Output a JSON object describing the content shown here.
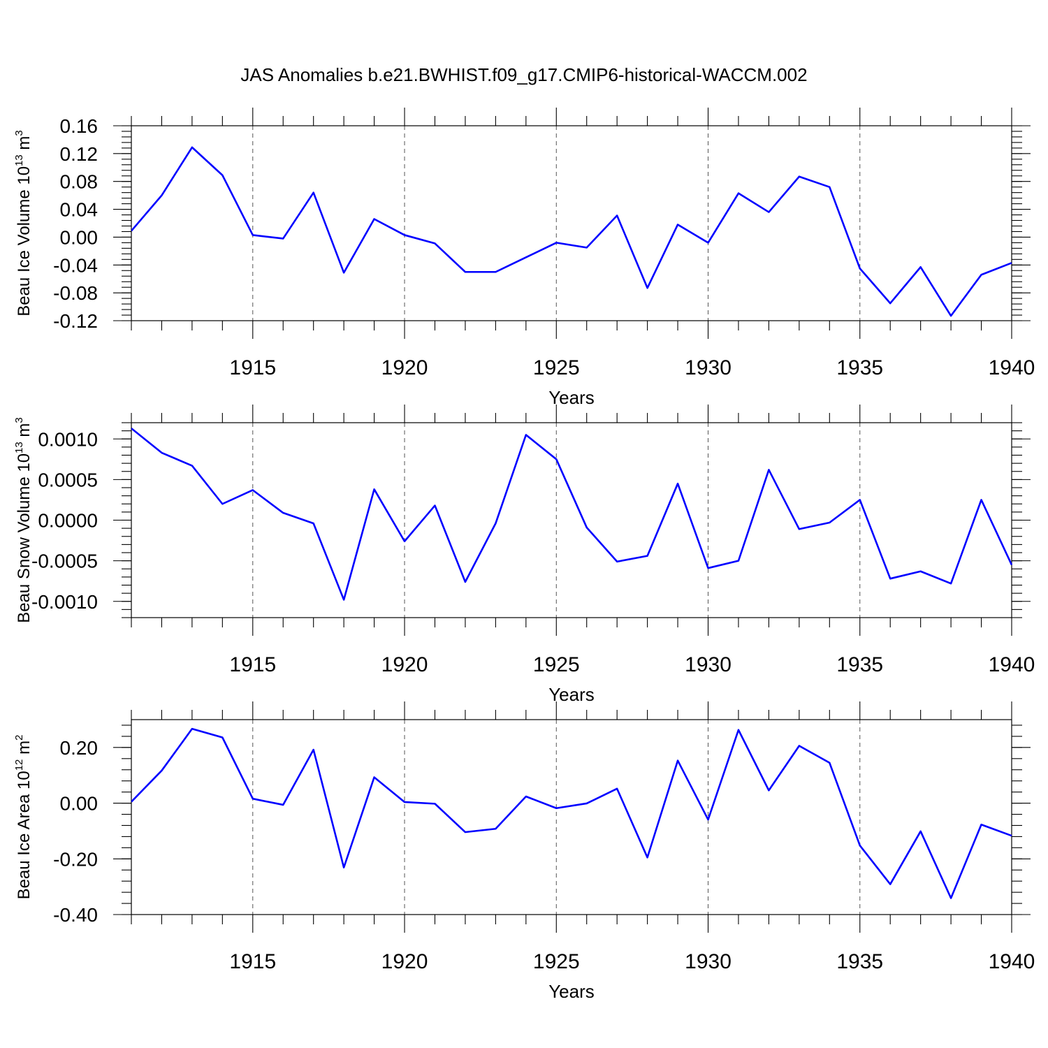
{
  "figure": {
    "title": "JAS Anomalies b.e21.BWHIST.f09_g17.CMIP6-historical-WACCM.002"
  },
  "chart_data": [
    {
      "type": "line",
      "id": "volume",
      "title": "",
      "xlabel": "Years",
      "ylabel": {
        "main": "Beau Ice Volume 10",
        "exp": "13",
        "unit": " m",
        "unit_exp": "3"
      },
      "xlim": [
        1911,
        1940
      ],
      "ylim": [
        -0.12,
        0.16
      ],
      "xticks": [
        1915,
        1920,
        1925,
        1930,
        1935,
        1940
      ],
      "xtick_labels": [
        "1915",
        "1920",
        "1925",
        "1930",
        "1935",
        "1940"
      ],
      "yticks": [
        -0.12,
        -0.08,
        -0.04,
        0.0,
        0.04,
        0.08,
        0.12,
        0.16
      ],
      "ytick_labels": [
        "-0.12",
        "-0.08",
        "-0.04",
        "0.00",
        "0.04",
        "0.08",
        "0.12",
        "0.16"
      ],
      "series_color": "#0000ff",
      "x": [
        1911,
        1912,
        1913,
        1914,
        1915,
        1916,
        1917,
        1918,
        1919,
        1920,
        1921,
        1922,
        1923,
        1924,
        1925,
        1926,
        1927,
        1928,
        1929,
        1930,
        1931,
        1932,
        1933,
        1934,
        1935,
        1936,
        1937,
        1938,
        1939,
        1940
      ],
      "values": [
        0.009,
        0.06,
        0.129,
        0.089,
        0.003,
        -0.002,
        0.064,
        -0.051,
        0.026,
        0.003,
        -0.009,
        -0.05,
        -0.05,
        -0.029,
        -0.008,
        -0.015,
        0.031,
        -0.073,
        0.018,
        -0.008,
        0.063,
        0.036,
        0.087,
        0.072,
        -0.045,
        -0.095,
        -0.043,
        -0.113,
        -0.054,
        -0.037
      ]
    },
    {
      "type": "line",
      "id": "snow",
      "title": "",
      "xlabel": "Years",
      "ylabel": {
        "main": "Beau Snow Volume 10",
        "exp": "13",
        "unit": " m",
        "unit_exp": "3"
      },
      "xlim": [
        1911,
        1940
      ],
      "ylim": [
        -0.0012,
        0.0012
      ],
      "xticks": [
        1915,
        1920,
        1925,
        1930,
        1935,
        1940
      ],
      "xtick_labels": [
        "1915",
        "1920",
        "1925",
        "1930",
        "1935",
        "1940"
      ],
      "yticks": [
        -0.001,
        -0.0005,
        0.0,
        0.0005,
        0.001
      ],
      "ytick_labels": [
        "-0.0010",
        "-0.0005",
        "0.0000",
        "0.0005",
        "0.0010"
      ],
      "series_color": "#0000ff",
      "x": [
        1911,
        1912,
        1913,
        1914,
        1915,
        1916,
        1917,
        1918,
        1919,
        1920,
        1921,
        1922,
        1923,
        1924,
        1925,
        1926,
        1927,
        1928,
        1929,
        1930,
        1931,
        1932,
        1933,
        1934,
        1935,
        1936,
        1937,
        1938,
        1939,
        1940
      ],
      "values": [
        0.00113,
        0.00083,
        0.00067,
        0.0002,
        0.00037,
        9e-05,
        -4e-05,
        -0.00098,
        0.00038,
        -0.00026,
        0.00018,
        -0.00076,
        -4e-05,
        0.00105,
        0.00075,
        -9e-05,
        -0.00051,
        -0.00044,
        0.00045,
        -0.00059,
        -0.0005,
        0.00062,
        -0.00011,
        -3e-05,
        0.00025,
        -0.00072,
        -0.00063,
        -0.00078,
        0.00025,
        -0.00055
      ]
    },
    {
      "type": "line",
      "id": "area",
      "title": "",
      "xlabel": "Years",
      "ylabel": {
        "main": "Beau Ice Area 10",
        "exp": "12",
        "unit": " m",
        "unit_exp": "2"
      },
      "xlim": [
        1911,
        1940
      ],
      "ylim": [
        -0.4,
        0.3
      ],
      "xticks": [
        1915,
        1920,
        1925,
        1930,
        1935,
        1940
      ],
      "xtick_labels": [
        "1915",
        "1920",
        "1925",
        "1930",
        "1935",
        "1940"
      ],
      "yticks": [
        -0.4,
        -0.2,
        0.0,
        0.2
      ],
      "ytick_labels": [
        "-0.40",
        "-0.20",
        "0.00",
        "0.20"
      ],
      "series_color": "#0000ff",
      "x": [
        1911,
        1912,
        1913,
        1914,
        1915,
        1916,
        1917,
        1918,
        1919,
        1920,
        1921,
        1922,
        1923,
        1924,
        1925,
        1926,
        1927,
        1928,
        1929,
        1930,
        1931,
        1932,
        1933,
        1934,
        1935,
        1936,
        1937,
        1938,
        1939,
        1940
      ],
      "values": [
        0.005,
        0.117,
        0.267,
        0.236,
        0.016,
        -0.006,
        0.192,
        -0.231,
        0.093,
        0.004,
        -0.002,
        -0.104,
        -0.092,
        0.024,
        -0.018,
        -0.001,
        0.052,
        -0.195,
        0.153,
        -0.059,
        0.263,
        0.046,
        0.206,
        0.145,
        -0.152,
        -0.291,
        -0.101,
        -0.341,
        -0.077,
        -0.117
      ]
    }
  ]
}
